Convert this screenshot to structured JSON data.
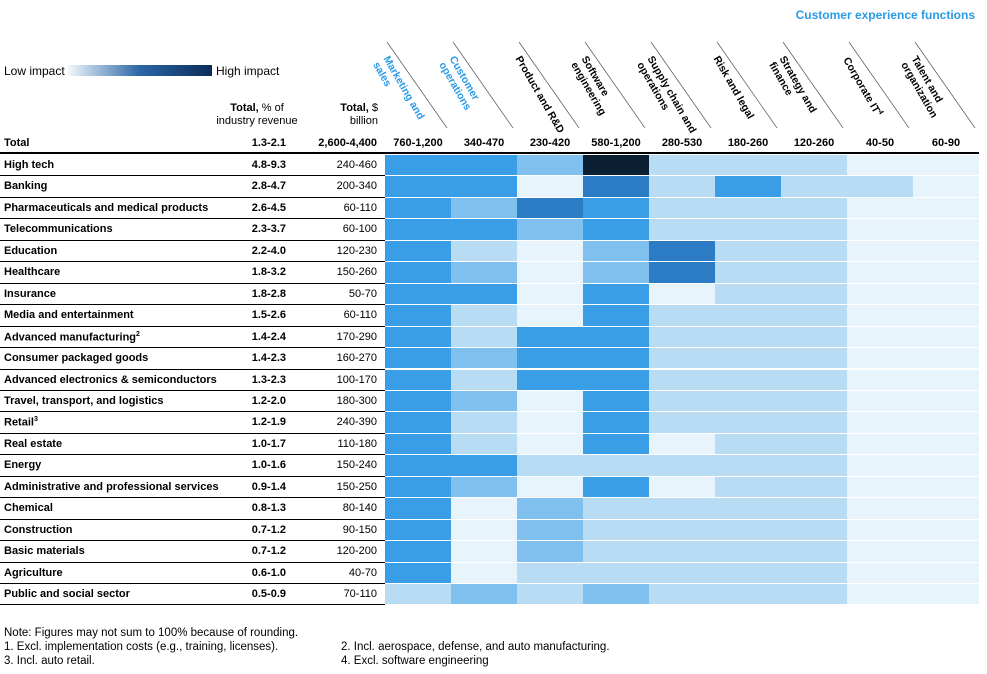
{
  "section_title": "Customer experience functions",
  "legend": {
    "low": "Low impact",
    "high": "High impact"
  },
  "headers": {
    "pct_bold": "Total,",
    "pct_rest": " % of",
    "pct_line2": "industry revenue",
    "bn_bold": "Total,",
    "bn_rest": " $",
    "bn_line2": "billion"
  },
  "chart_data": {
    "type": "heatmap",
    "title": "",
    "value_scale": "1 = low impact, 7 = high impact",
    "columns": [
      {
        "name": "Marketing and sales",
        "lines": [
          "Marketing and",
          "sales"
        ],
        "total": "760-1,200",
        "highlight": true
      },
      {
        "name": "Customer operations",
        "lines": [
          "Customer",
          "operations"
        ],
        "total": "340-470",
        "highlight": true
      },
      {
        "name": "Product and R&D",
        "lines": [
          "Product and R&D"
        ],
        "total": "230-420",
        "highlight": false
      },
      {
        "name": "Software engineering",
        "lines": [
          "Software",
          "engineering"
        ],
        "total": "580-1,200",
        "highlight": false
      },
      {
        "name": "Supply chain and operations",
        "lines": [
          "Supply chain and",
          "operations"
        ],
        "total": "280-530",
        "highlight": false
      },
      {
        "name": "Risk and legal",
        "lines": [
          "Risk and legal"
        ],
        "total": "180-260",
        "highlight": false
      },
      {
        "name": "Strategy and finance",
        "lines": [
          "Strategy and",
          "finance"
        ],
        "total": "120-260",
        "highlight": false
      },
      {
        "name": "Corporate IT",
        "lines": [
          "Corporate IT"
        ],
        "sup": "4",
        "total": "40-50",
        "highlight": false
      },
      {
        "name": "Talent and organization",
        "lines": [
          "Talent and",
          "organization"
        ],
        "total": "60-90",
        "highlight": false
      }
    ],
    "total_row": {
      "label": "Total",
      "pct": "1.3-2.1",
      "bn": "2,600-4,400"
    },
    "rows": [
      {
        "label": "High tech",
        "pct": "4.8-9.3",
        "bn": "240-460",
        "impact": [
          4,
          4,
          3,
          7,
          2,
          2,
          2,
          1,
          1
        ]
      },
      {
        "label": "Banking",
        "pct": "2.8-4.7",
        "bn": "200-340",
        "impact": [
          4,
          4,
          1,
          5,
          2,
          4,
          2,
          2,
          1
        ]
      },
      {
        "label": "Pharmaceuticals and medical products",
        "pct": "2.6-4.5",
        "bn": "60-110",
        "impact": [
          4,
          3,
          5,
          4,
          2,
          2,
          2,
          1,
          1
        ]
      },
      {
        "label": "Telecommunications",
        "pct": "2.3-3.7",
        "bn": "60-100",
        "impact": [
          4,
          4,
          3,
          4,
          2,
          2,
          2,
          1,
          1
        ]
      },
      {
        "label": "Education",
        "pct": "2.2-4.0",
        "bn": "120-230",
        "impact": [
          4,
          2,
          1,
          3,
          5,
          2,
          2,
          1,
          1
        ]
      },
      {
        "label": "Healthcare",
        "pct": "1.8-3.2",
        "bn": "150-260",
        "impact": [
          4,
          3,
          1,
          3,
          5,
          2,
          2,
          1,
          1
        ]
      },
      {
        "label": "Insurance",
        "pct": "1.8-2.8",
        "bn": "50-70",
        "impact": [
          4,
          4,
          1,
          4,
          1,
          2,
          2,
          1,
          1
        ]
      },
      {
        "label": "Media and entertainment",
        "pct": "1.5-2.6",
        "bn": "60-110",
        "impact": [
          4,
          2,
          1,
          4,
          2,
          2,
          2,
          1,
          1
        ]
      },
      {
        "label": "Advanced manufacturing",
        "sup": "2",
        "pct": "1.4-2.4",
        "bn": "170-290",
        "impact": [
          4,
          2,
          4,
          4,
          2,
          2,
          2,
          1,
          1
        ]
      },
      {
        "label": "Consumer packaged goods",
        "pct": "1.4-2.3",
        "bn": "160-270",
        "impact": [
          4,
          3,
          4,
          4,
          2,
          2,
          2,
          1,
          1
        ]
      },
      {
        "label": "Advanced electronics & semiconductors",
        "pct": "1.3-2.3",
        "bn": "100-170",
        "impact": [
          4,
          2,
          4,
          4,
          2,
          2,
          2,
          1,
          1
        ]
      },
      {
        "label": "Travel, transport, and logistics",
        "pct": "1.2-2.0",
        "bn": "180-300",
        "impact": [
          4,
          3,
          1,
          4,
          2,
          2,
          2,
          1,
          1
        ]
      },
      {
        "label": "Retail",
        "sup": "3",
        "pct": "1.2-1.9",
        "bn": "240-390",
        "impact": [
          4,
          2,
          1,
          4,
          2,
          2,
          2,
          1,
          1
        ]
      },
      {
        "label": "Real estate",
        "pct": "1.0-1.7",
        "bn": "110-180",
        "impact": [
          4,
          2,
          1,
          4,
          1,
          2,
          2,
          1,
          1
        ]
      },
      {
        "label": "Energy",
        "pct": "1.0-1.6",
        "bn": "150-240",
        "impact": [
          4,
          4,
          2,
          2,
          2,
          2,
          2,
          1,
          1
        ]
      },
      {
        "label": "Administrative and professional services",
        "pct": "0.9-1.4",
        "bn": "150-250",
        "impact": [
          4,
          3,
          1,
          4,
          1,
          2,
          2,
          1,
          1
        ]
      },
      {
        "label": "Chemical",
        "pct": "0.8-1.3",
        "bn": "80-140",
        "impact": [
          4,
          1,
          3,
          2,
          2,
          2,
          2,
          1,
          1
        ]
      },
      {
        "label": "Construction",
        "pct": "0.7-1.2",
        "bn": "90-150",
        "impact": [
          4,
          1,
          3,
          2,
          2,
          2,
          2,
          1,
          1
        ]
      },
      {
        "label": "Basic materials",
        "pct": "0.7-1.2",
        "bn": "120-200",
        "impact": [
          4,
          1,
          3,
          2,
          2,
          2,
          2,
          1,
          1
        ]
      },
      {
        "label": "Agriculture",
        "pct": "0.6-1.0",
        "bn": "40-70",
        "impact": [
          4,
          1,
          2,
          2,
          2,
          2,
          2,
          1,
          1
        ]
      },
      {
        "label": "Public and social sector",
        "pct": "0.5-0.9",
        "bn": "70-110",
        "impact": [
          2,
          3,
          2,
          3,
          2,
          2,
          2,
          1,
          1
        ]
      }
    ]
  },
  "colors": {
    "scale": [
      "#ffffff",
      "#e8f4fc",
      "#b9dcf5",
      "#7fc0ee",
      "#3a9ee6",
      "#2b7cc4",
      "#1d4f86",
      "#0b1f33"
    ],
    "highlight_header": "#2a9be6"
  },
  "notes": {
    "n0": "Note: Figures may not sum to 100% because of rounding.",
    "n1": "1. Excl. implementation costs (e.g., training, licenses).",
    "n2": "2. Incl. aerospace, defense, and auto manufacturing.",
    "n3": "3. Incl. auto retail.",
    "n4": "4. Excl. software engineering"
  }
}
